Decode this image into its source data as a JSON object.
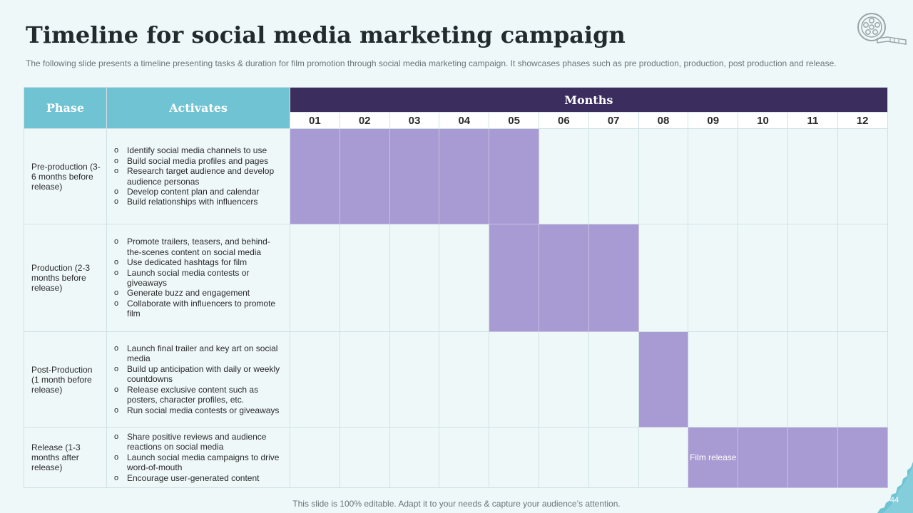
{
  "title": "Timeline for social media marketing campaign",
  "subtitle": "The following slide presents a timeline presenting tasks & duration for film promotion through social media marketing campaign. It showcases phases such as pre production, production, post production and release.",
  "table": {
    "phase_header": "Phase",
    "activities_header": "Activates",
    "months_header": "Months",
    "months": [
      "01",
      "02",
      "03",
      "04",
      "05",
      "06",
      "07",
      "08",
      "09",
      "10",
      "11",
      "12"
    ],
    "rows": [
      {
        "phase": "Pre-production (3-6 months before release)",
        "activities": [
          "Identify social media channels to use",
          "Build social media profiles and pages",
          "Research target audience and develop audience personas",
          "Develop content plan and calendar",
          "Build relationships with influencers"
        ],
        "active_months": [
          1,
          2,
          3,
          4,
          5
        ]
      },
      {
        "phase": "Production (2-3 months before release)",
        "activities": [
          "Promote trailers, teasers, and behind-the-scenes content on social media",
          "Use dedicated hashtags for film",
          "Launch social media contests or giveaways",
          "Generate buzz and engagement",
          "Collaborate with influencers to promote film"
        ],
        "active_months": [
          5,
          6,
          7
        ]
      },
      {
        "phase": "Post-Production (1 month before release)",
        "activities": [
          "Launch final trailer and key art on social media",
          "Build up anticipation with daily or weekly countdowns",
          "Release exclusive content such as posters, character profiles, etc.",
          "Run social media contests or giveaways"
        ],
        "active_months": [
          8
        ]
      },
      {
        "phase": "Release (1-3 months after release)",
        "activities": [
          "Share positive reviews and audience reactions on social media",
          "Launch social media campaigns to drive word-of-mouth",
          "Encourage user-generated content"
        ],
        "active_months": [
          9,
          10,
          11,
          12
        ],
        "bar_label": {
          "month": 9,
          "text": "Film release"
        }
      }
    ]
  },
  "footer": "This slide is 100% editable. Adapt it to your needs & capture your audience’s attention.",
  "page_number": "44",
  "colors": {
    "header_teal": "#6fc3d2",
    "months_header": "#3b2d5e",
    "bar": "#a89ad2",
    "background": "#eef8f9"
  },
  "icons": {
    "logo": "film-reel-icon"
  }
}
